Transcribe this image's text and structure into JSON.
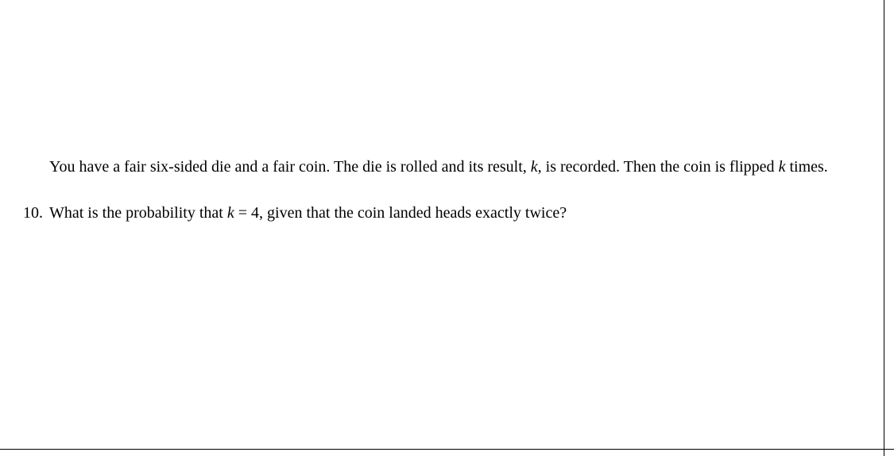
{
  "context": {
    "text_before_k1": "You have a fair six-sided die and a fair coin. The die is rolled and its result, ",
    "var_k1": "k",
    "text_after_k1": ", is recorded. Then the coin is flipped ",
    "var_k2": "k",
    "text_after_k2": " times."
  },
  "question": {
    "number": "10.",
    "text_before_eq": "What is the probability that ",
    "var_k": "k",
    "eq_text": " = 4, given that the coin landed heads exactly twice?"
  },
  "style": {
    "background_color": "#ffffff",
    "text_color": "#000000",
    "border_color": "#000000",
    "font_size": 20,
    "font_family": "Computer Modern serif"
  }
}
